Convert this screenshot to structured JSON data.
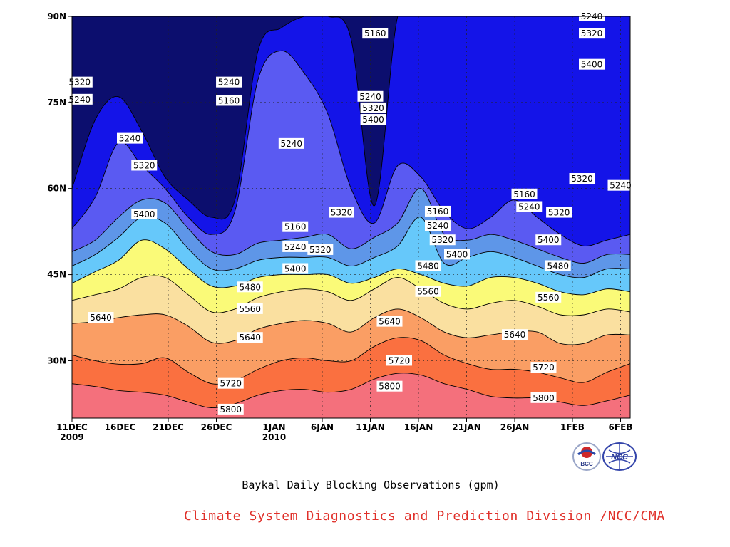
{
  "chart_data": {
    "type": "heatmap",
    "plot_kind": "latitude-time filled contour",
    "title": "Baykal Daily Blocking Observations (gpm)",
    "x_tick_labels": [
      {
        "label": "11DEC",
        "sub": "2009"
      },
      {
        "label": "16DEC",
        "sub": ""
      },
      {
        "label": "21DEC",
        "sub": ""
      },
      {
        "label": "26DEC",
        "sub": ""
      },
      {
        "label": "1JAN",
        "sub": "2010"
      },
      {
        "label": "6JAN",
        "sub": ""
      },
      {
        "label": "11JAN",
        "sub": ""
      },
      {
        "label": "16JAN",
        "sub": ""
      },
      {
        "label": "21JAN",
        "sub": ""
      },
      {
        "label": "26JAN",
        "sub": ""
      },
      {
        "label": "1FEB",
        "sub": ""
      },
      {
        "label": "6FEB",
        "sub": ""
      }
    ],
    "x_range_days": [
      0,
      58
    ],
    "x_tick_days": [
      0,
      5,
      10,
      15,
      21,
      26,
      31,
      36,
      41,
      46,
      52,
      57
    ],
    "y_tick_labels": [
      "30N",
      "45N",
      "60N",
      "75N",
      "90N"
    ],
    "y_tick_values": [
      30,
      45,
      60,
      75,
      90
    ],
    "ylim": [
      20,
      90
    ],
    "grid": true,
    "contour_levels": [
      5160,
      5240,
      5320,
      5400,
      5480,
      5560,
      5640,
      5720,
      5800
    ],
    "fill_colors": [
      "#0c0e6e",
      "#1414e8",
      "#5a5af2",
      "#5e96e8",
      "#66c8fa",
      "#fafa78",
      "#fae0a0",
      "#fa9e64",
      "#fa7040",
      "#f4707c"
    ],
    "boundaries": [
      {
        "level": 5800,
        "lat": [
          26.0,
          25.5,
          24.8,
          24.5,
          24.0,
          22.8,
          21.8,
          22.5,
          24.0,
          24.8,
          25.0,
          24.5,
          25.0,
          26.8,
          27.8,
          27.5,
          26.0,
          25.0,
          23.8,
          23.5,
          23.5,
          22.8,
          22.2,
          23.0,
          24.0
        ]
      },
      {
        "level": 5720,
        "lat": [
          31.0,
          30.0,
          29.4,
          29.5,
          30.5,
          28.0,
          26.0,
          26.5,
          28.5,
          30.0,
          30.5,
          30.0,
          30.0,
          32.5,
          34.0,
          33.5,
          31.0,
          29.5,
          28.5,
          28.5,
          28.0,
          27.0,
          26.2,
          28.0,
          29.5
        ]
      },
      {
        "level": 5640,
        "lat": [
          36.5,
          36.8,
          37.5,
          38.0,
          38.0,
          36.0,
          33.2,
          33.5,
          35.5,
          36.5,
          37.0,
          36.5,
          35.0,
          37.5,
          39.0,
          37.5,
          35.0,
          34.0,
          34.5,
          35.0,
          35.0,
          33.0,
          33.0,
          34.5,
          34.5
        ]
      },
      {
        "level": 5560,
        "lat": [
          40.5,
          41.5,
          42.5,
          44.5,
          44.5,
          41.5,
          38.5,
          39.0,
          41.0,
          42.0,
          42.5,
          42.0,
          40.5,
          42.5,
          44.5,
          42.5,
          40.0,
          39.0,
          40.0,
          40.5,
          39.5,
          38.0,
          38.0,
          39.0,
          38.5
        ]
      },
      {
        "level": 5480,
        "lat": [
          43.5,
          45.5,
          47.5,
          51.0,
          49.5,
          46.0,
          43.0,
          43.0,
          44.5,
          45.0,
          45.0,
          45.0,
          43.5,
          44.5,
          46.0,
          45.0,
          43.5,
          43.0,
          44.5,
          44.5,
          43.5,
          42.0,
          41.5,
          42.5,
          42.0
        ]
      },
      {
        "level": 5400,
        "lat": [
          46.5,
          48.5,
          51.5,
          55.0,
          54.0,
          49.5,
          46.0,
          46.0,
          47.5,
          48.0,
          48.0,
          48.0,
          46.5,
          48.0,
          50.0,
          55.0,
          47.0,
          48.0,
          49.0,
          48.0,
          46.5,
          45.0,
          44.5,
          46.0,
          46.0
        ]
      },
      {
        "level": 5320,
        "lat": [
          49.0,
          51.0,
          55.0,
          58.0,
          57.5,
          53.0,
          49.0,
          48.5,
          50.5,
          51.0,
          51.5,
          52.0,
          49.5,
          51.5,
          54.0,
          60.0,
          52.0,
          51.0,
          52.0,
          51.0,
          49.5,
          48.0,
          47.0,
          48.5,
          48.5
        ]
      },
      {
        "level": 5240,
        "lat": [
          53.0,
          58.5,
          68.0,
          64.0,
          60.0,
          55.0,
          52.0,
          56.0,
          79.0,
          84.0,
          80.0,
          73.0,
          60.0,
          54.0,
          64.0,
          62.0,
          56.0,
          53.0,
          55.0,
          58.0,
          55.0,
          52.0,
          50.0,
          51.0,
          52.0
        ]
      },
      {
        "level": 5160,
        "lat": [
          60.0,
          72.0,
          76.0,
          70.0,
          62.0,
          58.0,
          55.0,
          58.0,
          84.0,
          88.0,
          90.0,
          90.0,
          86.0,
          57.0,
          90.0,
          90.0,
          90.0,
          90.0,
          90.0,
          90.0,
          90.0,
          90.0,
          90.0,
          90.0,
          90.0
        ]
      }
    ],
    "contour_labels": [
      {
        "text": "5320",
        "day": 0.8,
        "lat": 78.5
      },
      {
        "text": "5240",
        "day": 0.8,
        "lat": 75.5
      },
      {
        "text": "5240",
        "day": 16.3,
        "lat": 78.5
      },
      {
        "text": "5160",
        "day": 16.3,
        "lat": 75.3
      },
      {
        "text": "5160",
        "day": 31.5,
        "lat": 87.0
      },
      {
        "text": "5240",
        "day": 6.0,
        "lat": 68.7
      },
      {
        "text": "5320",
        "day": 7.5,
        "lat": 64.0
      },
      {
        "text": "5400",
        "day": 7.5,
        "lat": 55.5
      },
      {
        "text": "5240",
        "day": 22.8,
        "lat": 67.8
      },
      {
        "text": "5240",
        "day": 31.0,
        "lat": 76.0
      },
      {
        "text": "5320",
        "day": 31.3,
        "lat": 74.0
      },
      {
        "text": "5400",
        "day": 31.3,
        "lat": 72.0
      },
      {
        "text": "5320",
        "day": 28.0,
        "lat": 55.8
      },
      {
        "text": "5160",
        "day": 23.2,
        "lat": 53.3
      },
      {
        "text": "5240",
        "day": 23.2,
        "lat": 49.8
      },
      {
        "text": "5320",
        "day": 25.8,
        "lat": 49.3
      },
      {
        "text": "5400",
        "day": 23.2,
        "lat": 46.0
      },
      {
        "text": "5160",
        "day": 38.0,
        "lat": 56.0
      },
      {
        "text": "5240",
        "day": 38.0,
        "lat": 53.5
      },
      {
        "text": "5320",
        "day": 38.5,
        "lat": 51.0
      },
      {
        "text": "5400",
        "day": 40.0,
        "lat": 48.5
      },
      {
        "text": "5480",
        "day": 37.0,
        "lat": 46.5
      },
      {
        "text": "5560",
        "day": 37.0,
        "lat": 42.0
      },
      {
        "text": "5160",
        "day": 47.0,
        "lat": 59.0
      },
      {
        "text": "5240",
        "day": 47.5,
        "lat": 56.8
      },
      {
        "text": "5320",
        "day": 50.6,
        "lat": 55.8
      },
      {
        "text": "5320",
        "day": 53.0,
        "lat": 61.7
      },
      {
        "text": "5240",
        "day": 57.0,
        "lat": 60.5
      },
      {
        "text": "5240",
        "day": 54.0,
        "lat": 90.0
      },
      {
        "text": "5320",
        "day": 54.0,
        "lat": 87.0
      },
      {
        "text": "5400",
        "day": 54.0,
        "lat": 81.6
      },
      {
        "text": "5400",
        "day": 49.5,
        "lat": 51.0
      },
      {
        "text": "5480",
        "day": 50.5,
        "lat": 46.5
      },
      {
        "text": "5560",
        "day": 49.5,
        "lat": 41.0
      },
      {
        "text": "5640",
        "day": 46.0,
        "lat": 34.5
      },
      {
        "text": "5720",
        "day": 49.0,
        "lat": 28.8
      },
      {
        "text": "5800",
        "day": 49.0,
        "lat": 23.5
      },
      {
        "text": "5480",
        "day": 18.5,
        "lat": 42.8
      },
      {
        "text": "5560",
        "day": 18.5,
        "lat": 39.0
      },
      {
        "text": "5640",
        "day": 3.0,
        "lat": 37.5
      },
      {
        "text": "5640",
        "day": 18.5,
        "lat": 34.0
      },
      {
        "text": "5720",
        "day": 16.5,
        "lat": 26.0
      },
      {
        "text": "5800",
        "day": 16.5,
        "lat": 21.5
      },
      {
        "text": "5640",
        "day": 33.0,
        "lat": 36.8
      },
      {
        "text": "5720",
        "day": 34.0,
        "lat": 30.0
      },
      {
        "text": "5800",
        "day": 33.0,
        "lat": 25.5
      }
    ]
  },
  "footer": {
    "caption": "Baykal Daily Blocking Observations (gpm)",
    "credit": "Climate System Diagnostics and Prediction Division /NCC/CMA"
  },
  "logos": {
    "bcc_text": "BCC",
    "ncc_text": "NCC"
  }
}
